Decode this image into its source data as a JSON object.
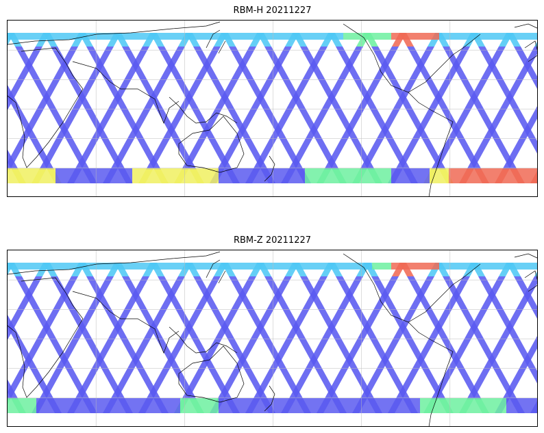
{
  "panels": [
    {
      "title": "RBM-H 20211227",
      "variant": "H"
    },
    {
      "title": "RBM-Z 20211227",
      "variant": "Z"
    }
  ],
  "colors": {
    "low": "#5a5af0",
    "mid_low": "#4fc8f5",
    "mid": "#6df0a0",
    "mid_high": "#f0f060",
    "high": "#f06a55",
    "coast": "#000000",
    "grid": "#bbbbbb"
  }
}
